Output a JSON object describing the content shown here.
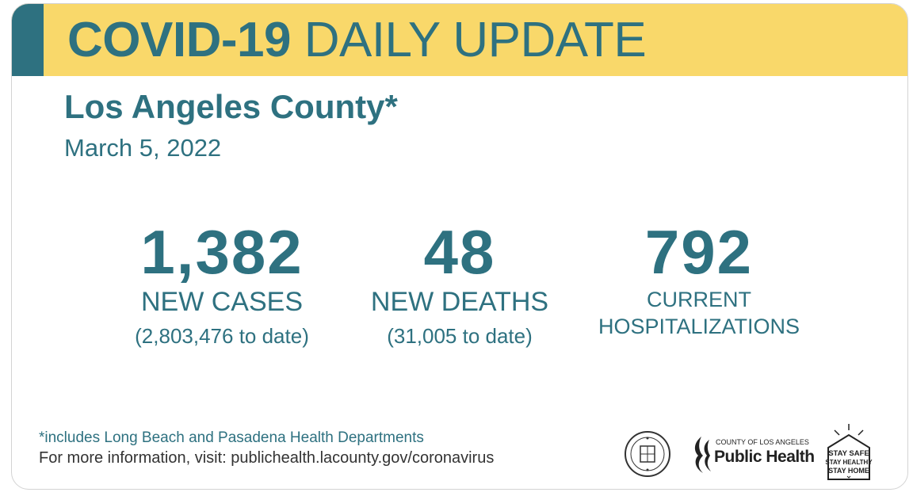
{
  "header": {
    "title_bold": "COVID-19",
    "title_light": "DAILY UPDATE",
    "county": "Los Angeles County*",
    "date": "March 5, 2022"
  },
  "stats": {
    "cases": {
      "number": "1,382",
      "label": "NEW CASES",
      "total": "(2,803,476 to date)"
    },
    "deaths": {
      "number": "48",
      "label": "NEW DEATHS",
      "total": "(31,005 to date)"
    },
    "hospitalizations": {
      "number": "792",
      "label_line1": "CURRENT",
      "label_line2": "HOSPITALIZATIONS"
    }
  },
  "footer": {
    "footnote": "*includes Long Beach and Pasadena Health Departments",
    "more_info": "For more information, visit: publichealth.lacounty.gov/coronavirus"
  },
  "logos": {
    "seal": "county-seal-logo",
    "public_health_small": "COUNTY OF LOS ANGELES",
    "public_health_big": "Public Health",
    "stay_safe": [
      "STAY SAFE",
      "STAY HEALTHY",
      "STAY HOME"
    ]
  },
  "colors": {
    "teal": "#2e7180",
    "banner_yellow": "#f9d86a",
    "text_dark": "#333333"
  }
}
